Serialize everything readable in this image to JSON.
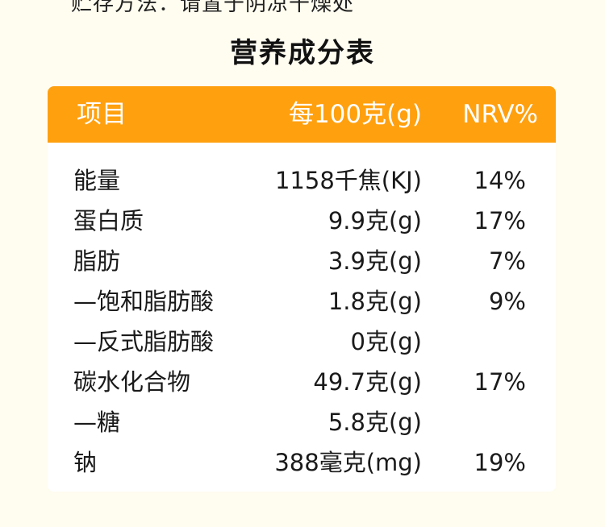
{
  "storage_note": "贮存方法：请置于阴凉干燥处",
  "table_title": "营养成分表",
  "colors": {
    "header_bg": "#ffa00f",
    "header_text": "#ffffff",
    "page_bg": "#fffcf0",
    "card_bg": "#ffffff"
  },
  "header": {
    "item": "项目",
    "per100": "每100克(g)",
    "nrv": "NRV%"
  },
  "rows": [
    {
      "name": "能量",
      "value": "1158千焦(KJ)",
      "nrv": "14%"
    },
    {
      "name": "蛋白质",
      "value": "9.9克(g)",
      "nrv": "17%"
    },
    {
      "name": "脂肪",
      "value": "3.9克(g)",
      "nrv": "7%"
    },
    {
      "name": "—饱和脂肪酸",
      "value": "1.8克(g)",
      "nrv": "9%"
    },
    {
      "name": "—反式脂肪酸",
      "value": "0克(g)",
      "nrv": ""
    },
    {
      "name": "碳水化合物",
      "value": "49.7克(g)",
      "nrv": "17%"
    },
    {
      "name": "—糖",
      "value": "5.8克(g)",
      "nrv": ""
    },
    {
      "name": "钠",
      "value": "388毫克(mg)",
      "nrv": "19%"
    }
  ]
}
